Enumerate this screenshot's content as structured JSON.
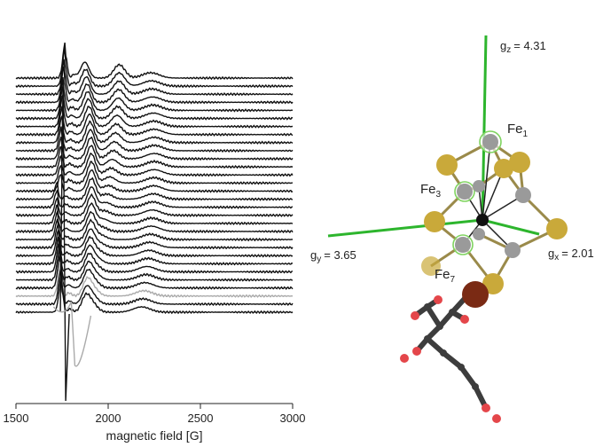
{
  "chart_data": {
    "type": "line",
    "xlabel": "magnetic field [G]",
    "xlim": [
      1500,
      3000
    ],
    "xticks": [
      "1500",
      "2000",
      "2500",
      "3000"
    ],
    "xtick_values": [
      1500,
      2000,
      2500,
      3000
    ],
    "grid": false,
    "trace_count": 30
  },
  "structure": {
    "axes": [
      {
        "symbol": "g",
        "sub": "z",
        "value": "= 4.31",
        "color": "#2db52d"
      },
      {
        "symbol": "g",
        "sub": "y",
        "value": "= 3.65",
        "color": "#2db52d"
      },
      {
        "symbol": "g",
        "sub": "x",
        "value": "= 2.01",
        "color": "#2db52d"
      }
    ],
    "atoms": [
      {
        "symbol": "Fe",
        "sub": "1"
      },
      {
        "symbol": "Fe",
        "sub": "3"
      },
      {
        "symbol": "Fe",
        "sub": "7"
      }
    ],
    "colors": {
      "sulfur": "#c9a93a",
      "iron": "#9a9a9a",
      "highlight": "#7fd35f",
      "copper": "#7a2a14",
      "carbon": "#3d3d3d",
      "oxygen": "#e4464a"
    }
  }
}
